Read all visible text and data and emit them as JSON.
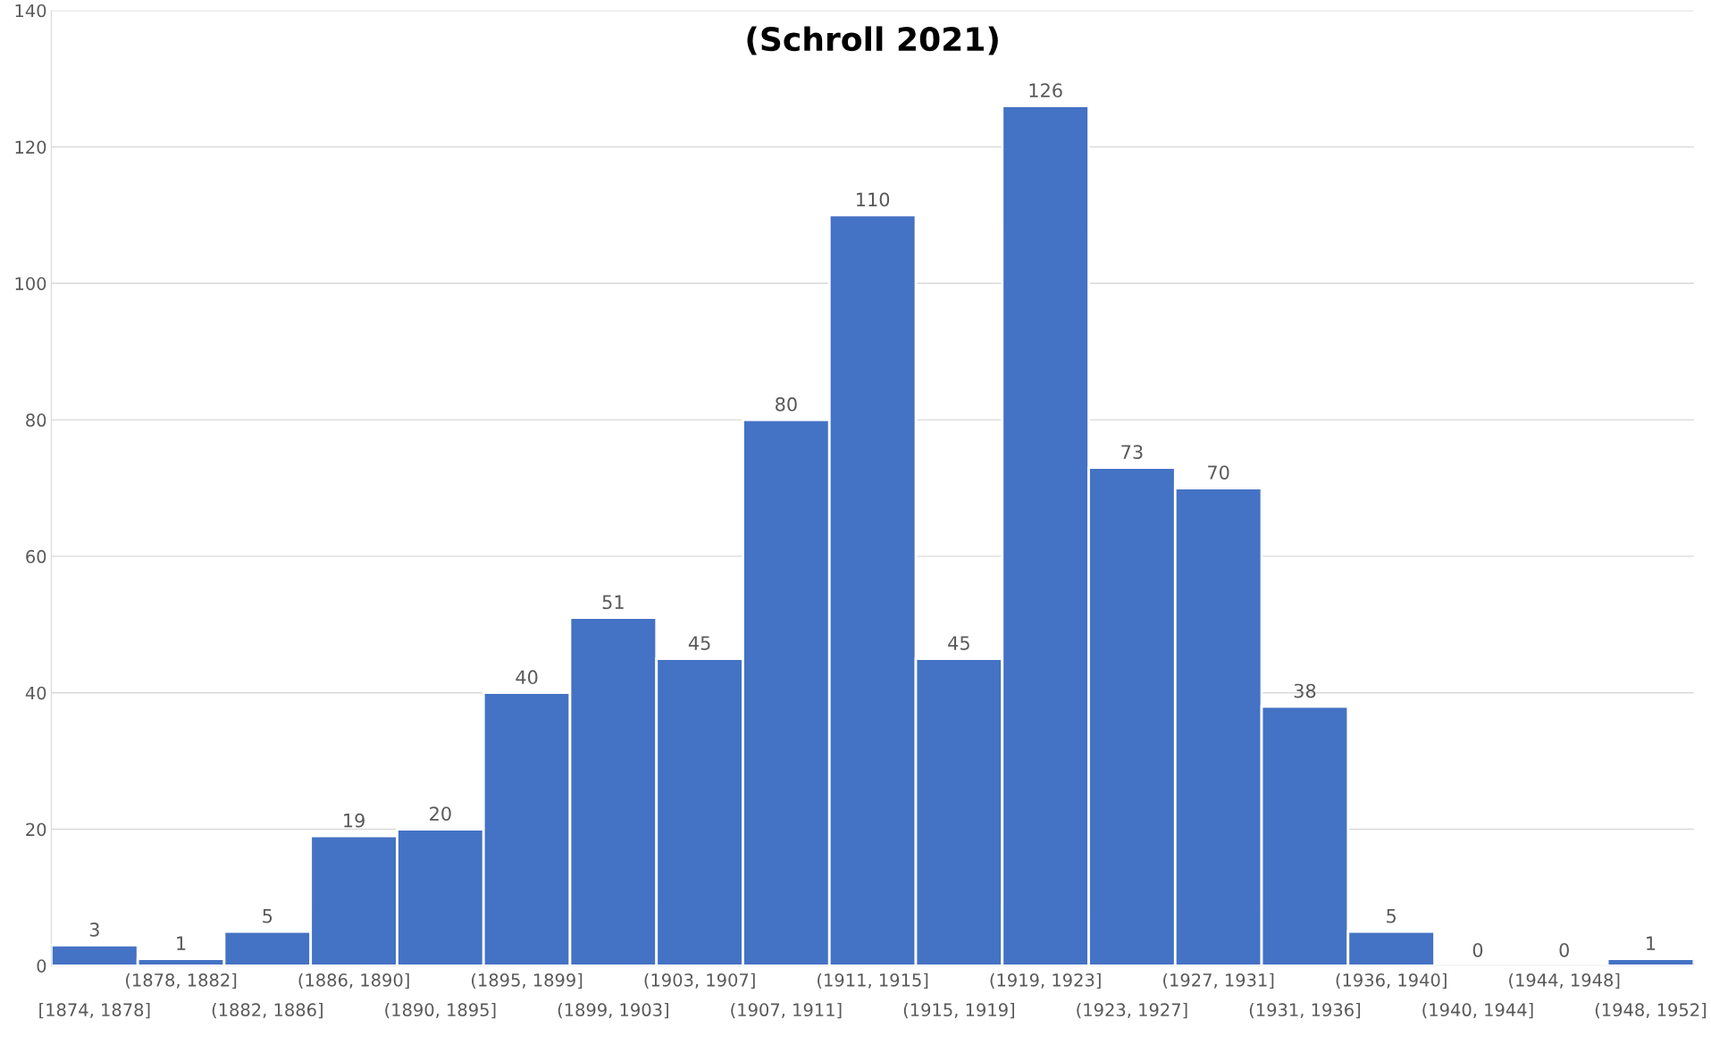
{
  "chart_data": {
    "type": "bar",
    "title": "(Schroll 2021)",
    "categories": [
      "[1874, 1878]",
      "(1878, 1882]",
      "(1882, 1886]",
      "(1886, 1890]",
      "(1890, 1895]",
      "(1895, 1899]",
      "(1899, 1903]",
      "(1903, 1907]",
      "(1907, 1911]",
      "(1911, 1915]",
      "(1915, 1919]",
      "(1919, 1923]",
      "(1923, 1927]",
      "(1927, 1931]",
      "(1931, 1936]",
      "(1936, 1940]",
      "(1940, 1944]",
      "(1944, 1948]",
      "(1948, 1952]"
    ],
    "values": [
      3,
      1,
      5,
      19,
      20,
      40,
      51,
      45,
      80,
      110,
      45,
      126,
      73,
      70,
      38,
      5,
      0,
      0,
      1
    ],
    "color": "#4472c4",
    "ylim": [
      0,
      140
    ],
    "yticks": [
      0,
      20,
      40,
      60,
      80,
      100,
      120,
      140
    ],
    "grid": "y",
    "data_labels": true
  }
}
